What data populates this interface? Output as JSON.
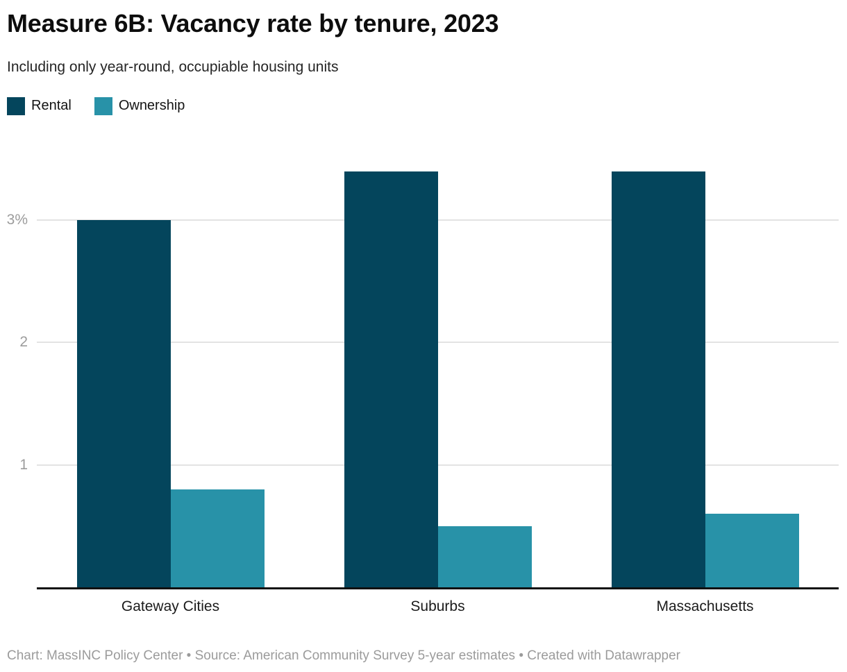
{
  "header": {
    "title": "Measure 6B: Vacancy rate by tenure, 2023",
    "subtitle": "Including only year-round, occupiable housing units"
  },
  "legend": {
    "items": [
      {
        "label": "Rental",
        "color": "#04455c"
      },
      {
        "label": "Ownership",
        "color": "#2892a8"
      }
    ]
  },
  "chart_data": {
    "type": "bar",
    "title": "Measure 6B: Vacancy rate by tenure, 2023",
    "subtitle": "Including only year-round, occupiable housing units",
    "categories": [
      "Gateway Cities",
      "Suburbs",
      "Massachusetts"
    ],
    "series": [
      {
        "name": "Rental",
        "color": "#04455c",
        "values": [
          3.0,
          3.4,
          3.4
        ]
      },
      {
        "name": "Ownership",
        "color": "#2892a8",
        "values": [
          0.8,
          0.5,
          0.6
        ]
      }
    ],
    "unit": "percent",
    "xlabel": "",
    "ylabel": "",
    "ylim": [
      0,
      3.54
    ],
    "grid": true,
    "legend_position": "top-left",
    "y_axis": {
      "ticks": [
        {
          "value": 1,
          "label": "1"
        },
        {
          "value": 2,
          "label": "2"
        },
        {
          "value": 3,
          "label": "3%"
        }
      ]
    }
  },
  "colors": {
    "rental": "#04455c",
    "ownership": "#2892a8",
    "gridline": "#e3e3e3",
    "axis_line": "#111111",
    "tick_label": "#9c9c9c",
    "footer_text": "#9b9b9b"
  },
  "footer": {
    "text": "Chart: MassINC Policy Center • Source: American Community Survey 5-year estimates • Created with Datawrapper"
  }
}
